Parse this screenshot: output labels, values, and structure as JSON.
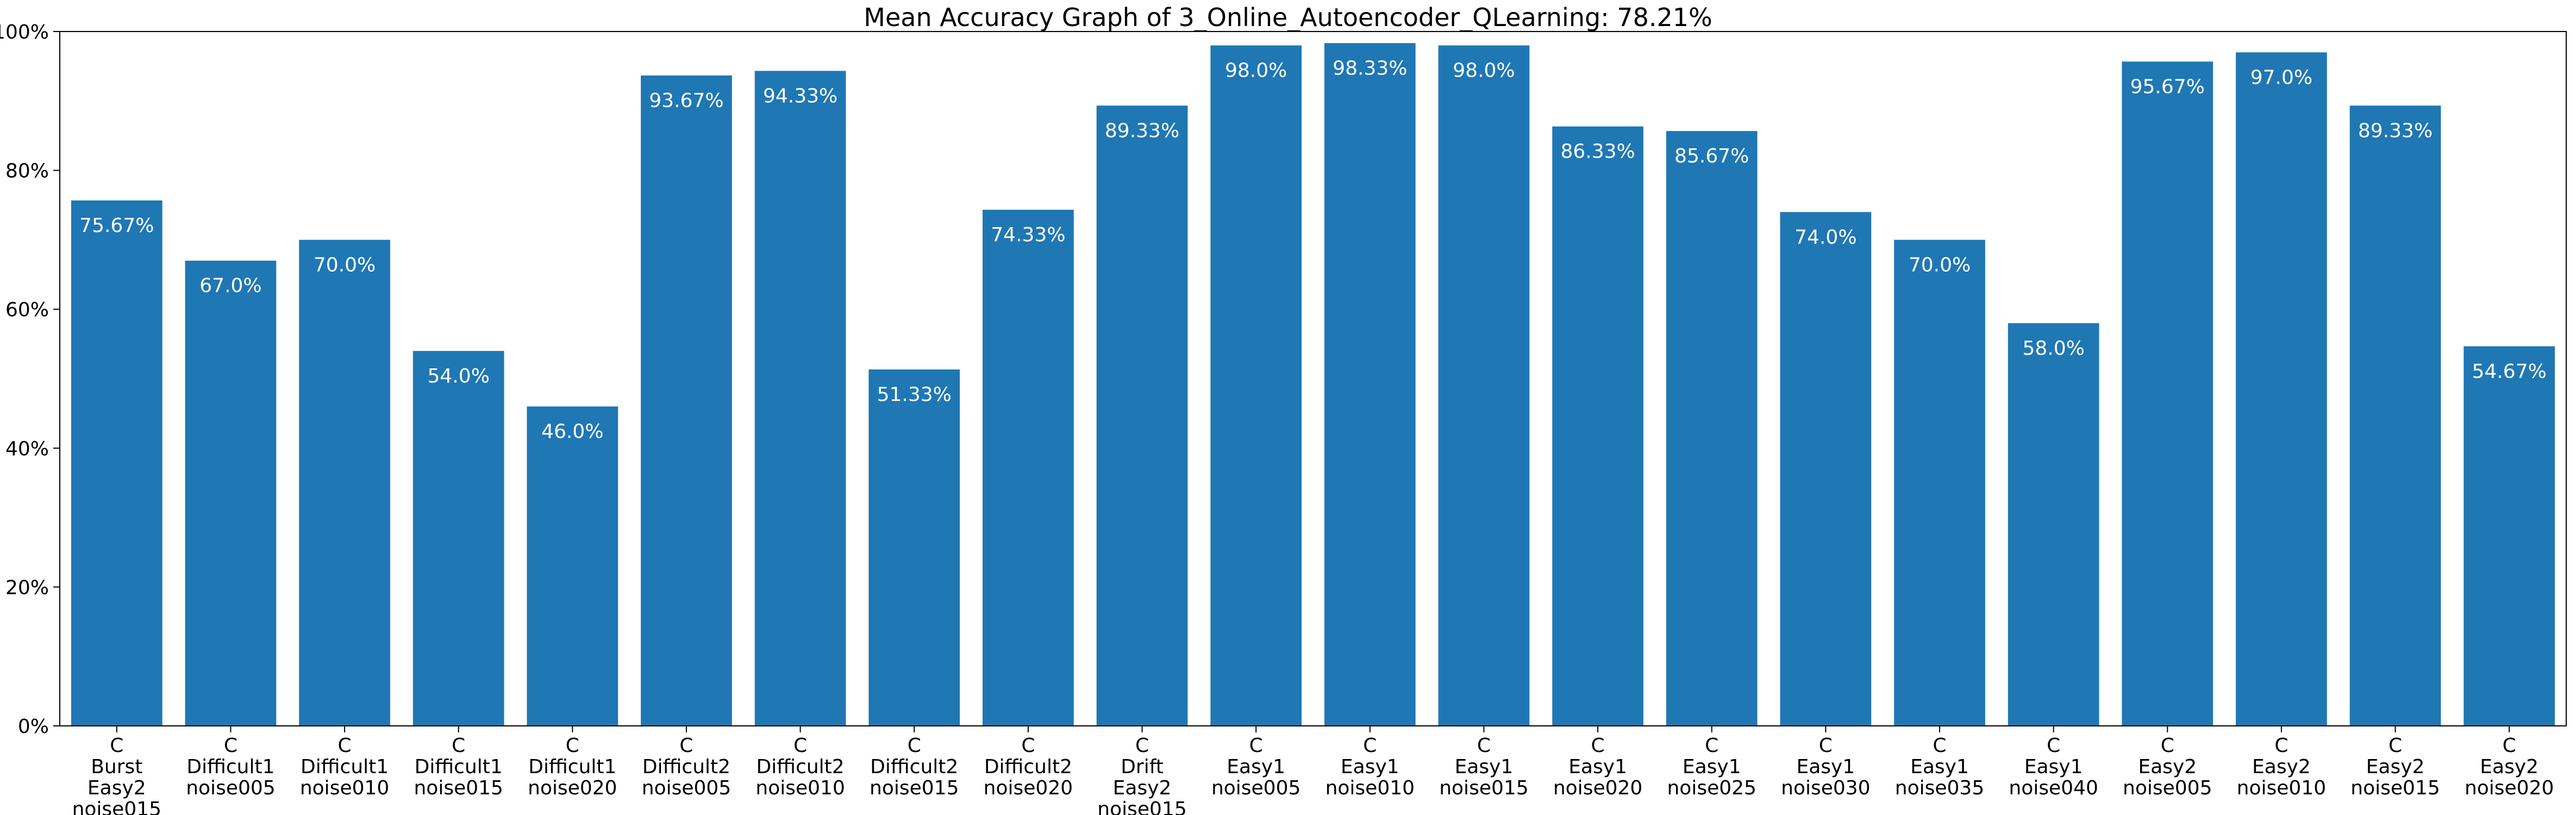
{
  "chart_data": {
    "type": "bar",
    "title": "Mean Accuracy Graph of 3_Online_Autoencoder_QLearning: 78.21%",
    "xlabel": "",
    "ylabel": "",
    "ylim": [
      0,
      100
    ],
    "y_ticks": [
      "0%",
      "20%",
      "40%",
      "60%",
      "80%",
      "100%"
    ],
    "y_tick_values": [
      0,
      20,
      40,
      60,
      80,
      100
    ],
    "bar_color": "#1f77b4",
    "grid": false,
    "categories": [
      [
        "C",
        "Burst",
        "Easy2",
        "noise015"
      ],
      [
        "C",
        "Difficult1",
        "noise005"
      ],
      [
        "C",
        "Difficult1",
        "noise010"
      ],
      [
        "C",
        "Difficult1",
        "noise015"
      ],
      [
        "C",
        "Difficult1",
        "noise020"
      ],
      [
        "C",
        "Difficult2",
        "noise005"
      ],
      [
        "C",
        "Difficult2",
        "noise010"
      ],
      [
        "C",
        "Difficult2",
        "noise015"
      ],
      [
        "C",
        "Difficult2",
        "noise020"
      ],
      [
        "C",
        "Drift",
        "Easy2",
        "noise015"
      ],
      [
        "C",
        "Easy1",
        "noise005"
      ],
      [
        "C",
        "Easy1",
        "noise010"
      ],
      [
        "C",
        "Easy1",
        "noise015"
      ],
      [
        "C",
        "Easy1",
        "noise020"
      ],
      [
        "C",
        "Easy1",
        "noise025"
      ],
      [
        "C",
        "Easy1",
        "noise030"
      ],
      [
        "C",
        "Easy1",
        "noise035"
      ],
      [
        "C",
        "Easy1",
        "noise040"
      ],
      [
        "C",
        "Easy2",
        "noise005"
      ],
      [
        "C",
        "Easy2",
        "noise010"
      ],
      [
        "C",
        "Easy2",
        "noise015"
      ],
      [
        "C",
        "Easy2",
        "noise020"
      ]
    ],
    "values": [
      75.67,
      67.0,
      70.0,
      54.0,
      46.0,
      93.67,
      94.33,
      51.33,
      74.33,
      89.33,
      98.0,
      98.33,
      98.0,
      86.33,
      85.67,
      74.0,
      70.0,
      58.0,
      95.67,
      97.0,
      89.33,
      54.67
    ],
    "data_labels": [
      "75.67%",
      "67.0%",
      "70.0%",
      "54.0%",
      "46.0%",
      "93.67%",
      "94.33%",
      "51.33%",
      "74.33%",
      "89.33%",
      "98.0%",
      "98.33%",
      "98.0%",
      "86.33%",
      "85.67%",
      "74.0%",
      "70.0%",
      "58.0%",
      "95.67%",
      "97.0%",
      "89.33%",
      "54.67%"
    ]
  }
}
